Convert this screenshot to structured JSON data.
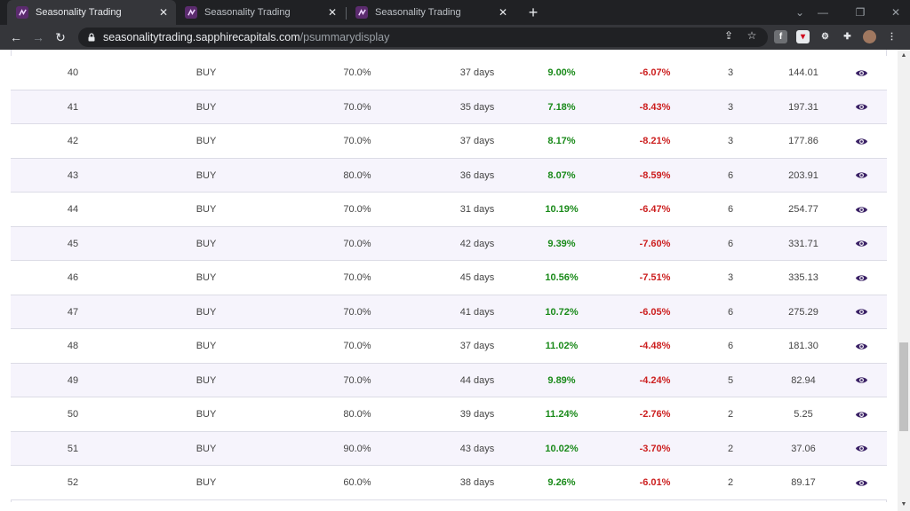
{
  "browser": {
    "tabs": [
      {
        "title": "Seasonality Trading",
        "active": true
      },
      {
        "title": "Seasonality Trading",
        "active": false
      },
      {
        "title": "Seasonality Trading",
        "active": false
      }
    ],
    "url_host": "seasonalitytrading.sapphirecapitals.com",
    "url_path": "/psummarydisplay"
  },
  "colors": {
    "gain": "#1a8a1a",
    "loss": "#cc1f1f",
    "eye": "#3b2266",
    "row_alt": "#f6f4fc"
  },
  "rows": [
    {
      "num": "40",
      "signal": "BUY",
      "accuracy": "70.0%",
      "days": "37 days",
      "gain": "9.00%",
      "loss": "-6.07%",
      "count": "3",
      "value": "144.01"
    },
    {
      "num": "41",
      "signal": "BUY",
      "accuracy": "70.0%",
      "days": "35 days",
      "gain": "7.18%",
      "loss": "-8.43%",
      "count": "3",
      "value": "197.31"
    },
    {
      "num": "42",
      "signal": "BUY",
      "accuracy": "70.0%",
      "days": "37 days",
      "gain": "8.17%",
      "loss": "-8.21%",
      "count": "3",
      "value": "177.86"
    },
    {
      "num": "43",
      "signal": "BUY",
      "accuracy": "80.0%",
      "days": "36 days",
      "gain": "8.07%",
      "loss": "-8.59%",
      "count": "6",
      "value": "203.91"
    },
    {
      "num": "44",
      "signal": "BUY",
      "accuracy": "70.0%",
      "days": "31 days",
      "gain": "10.19%",
      "loss": "-6.47%",
      "count": "6",
      "value": "254.77"
    },
    {
      "num": "45",
      "signal": "BUY",
      "accuracy": "70.0%",
      "days": "42 days",
      "gain": "9.39%",
      "loss": "-7.60%",
      "count": "6",
      "value": "331.71"
    },
    {
      "num": "46",
      "signal": "BUY",
      "accuracy": "70.0%",
      "days": "45 days",
      "gain": "10.56%",
      "loss": "-7.51%",
      "count": "3",
      "value": "335.13"
    },
    {
      "num": "47",
      "signal": "BUY",
      "accuracy": "70.0%",
      "days": "41 days",
      "gain": "10.72%",
      "loss": "-6.05%",
      "count": "6",
      "value": "275.29"
    },
    {
      "num": "48",
      "signal": "BUY",
      "accuracy": "70.0%",
      "days": "37 days",
      "gain": "11.02%",
      "loss": "-4.48%",
      "count": "6",
      "value": "181.30"
    },
    {
      "num": "49",
      "signal": "BUY",
      "accuracy": "70.0%",
      "days": "44 days",
      "gain": "9.89%",
      "loss": "-4.24%",
      "count": "5",
      "value": "82.94"
    },
    {
      "num": "50",
      "signal": "BUY",
      "accuracy": "80.0%",
      "days": "39 days",
      "gain": "11.24%",
      "loss": "-2.76%",
      "count": "2",
      "value": "5.25"
    },
    {
      "num": "51",
      "signal": "BUY",
      "accuracy": "90.0%",
      "days": "43 days",
      "gain": "10.02%",
      "loss": "-3.70%",
      "count": "2",
      "value": "37.06"
    },
    {
      "num": "52",
      "signal": "BUY",
      "accuracy": "60.0%",
      "days": "38 days",
      "gain": "9.26%",
      "loss": "-6.01%",
      "count": "2",
      "value": "89.17"
    }
  ]
}
